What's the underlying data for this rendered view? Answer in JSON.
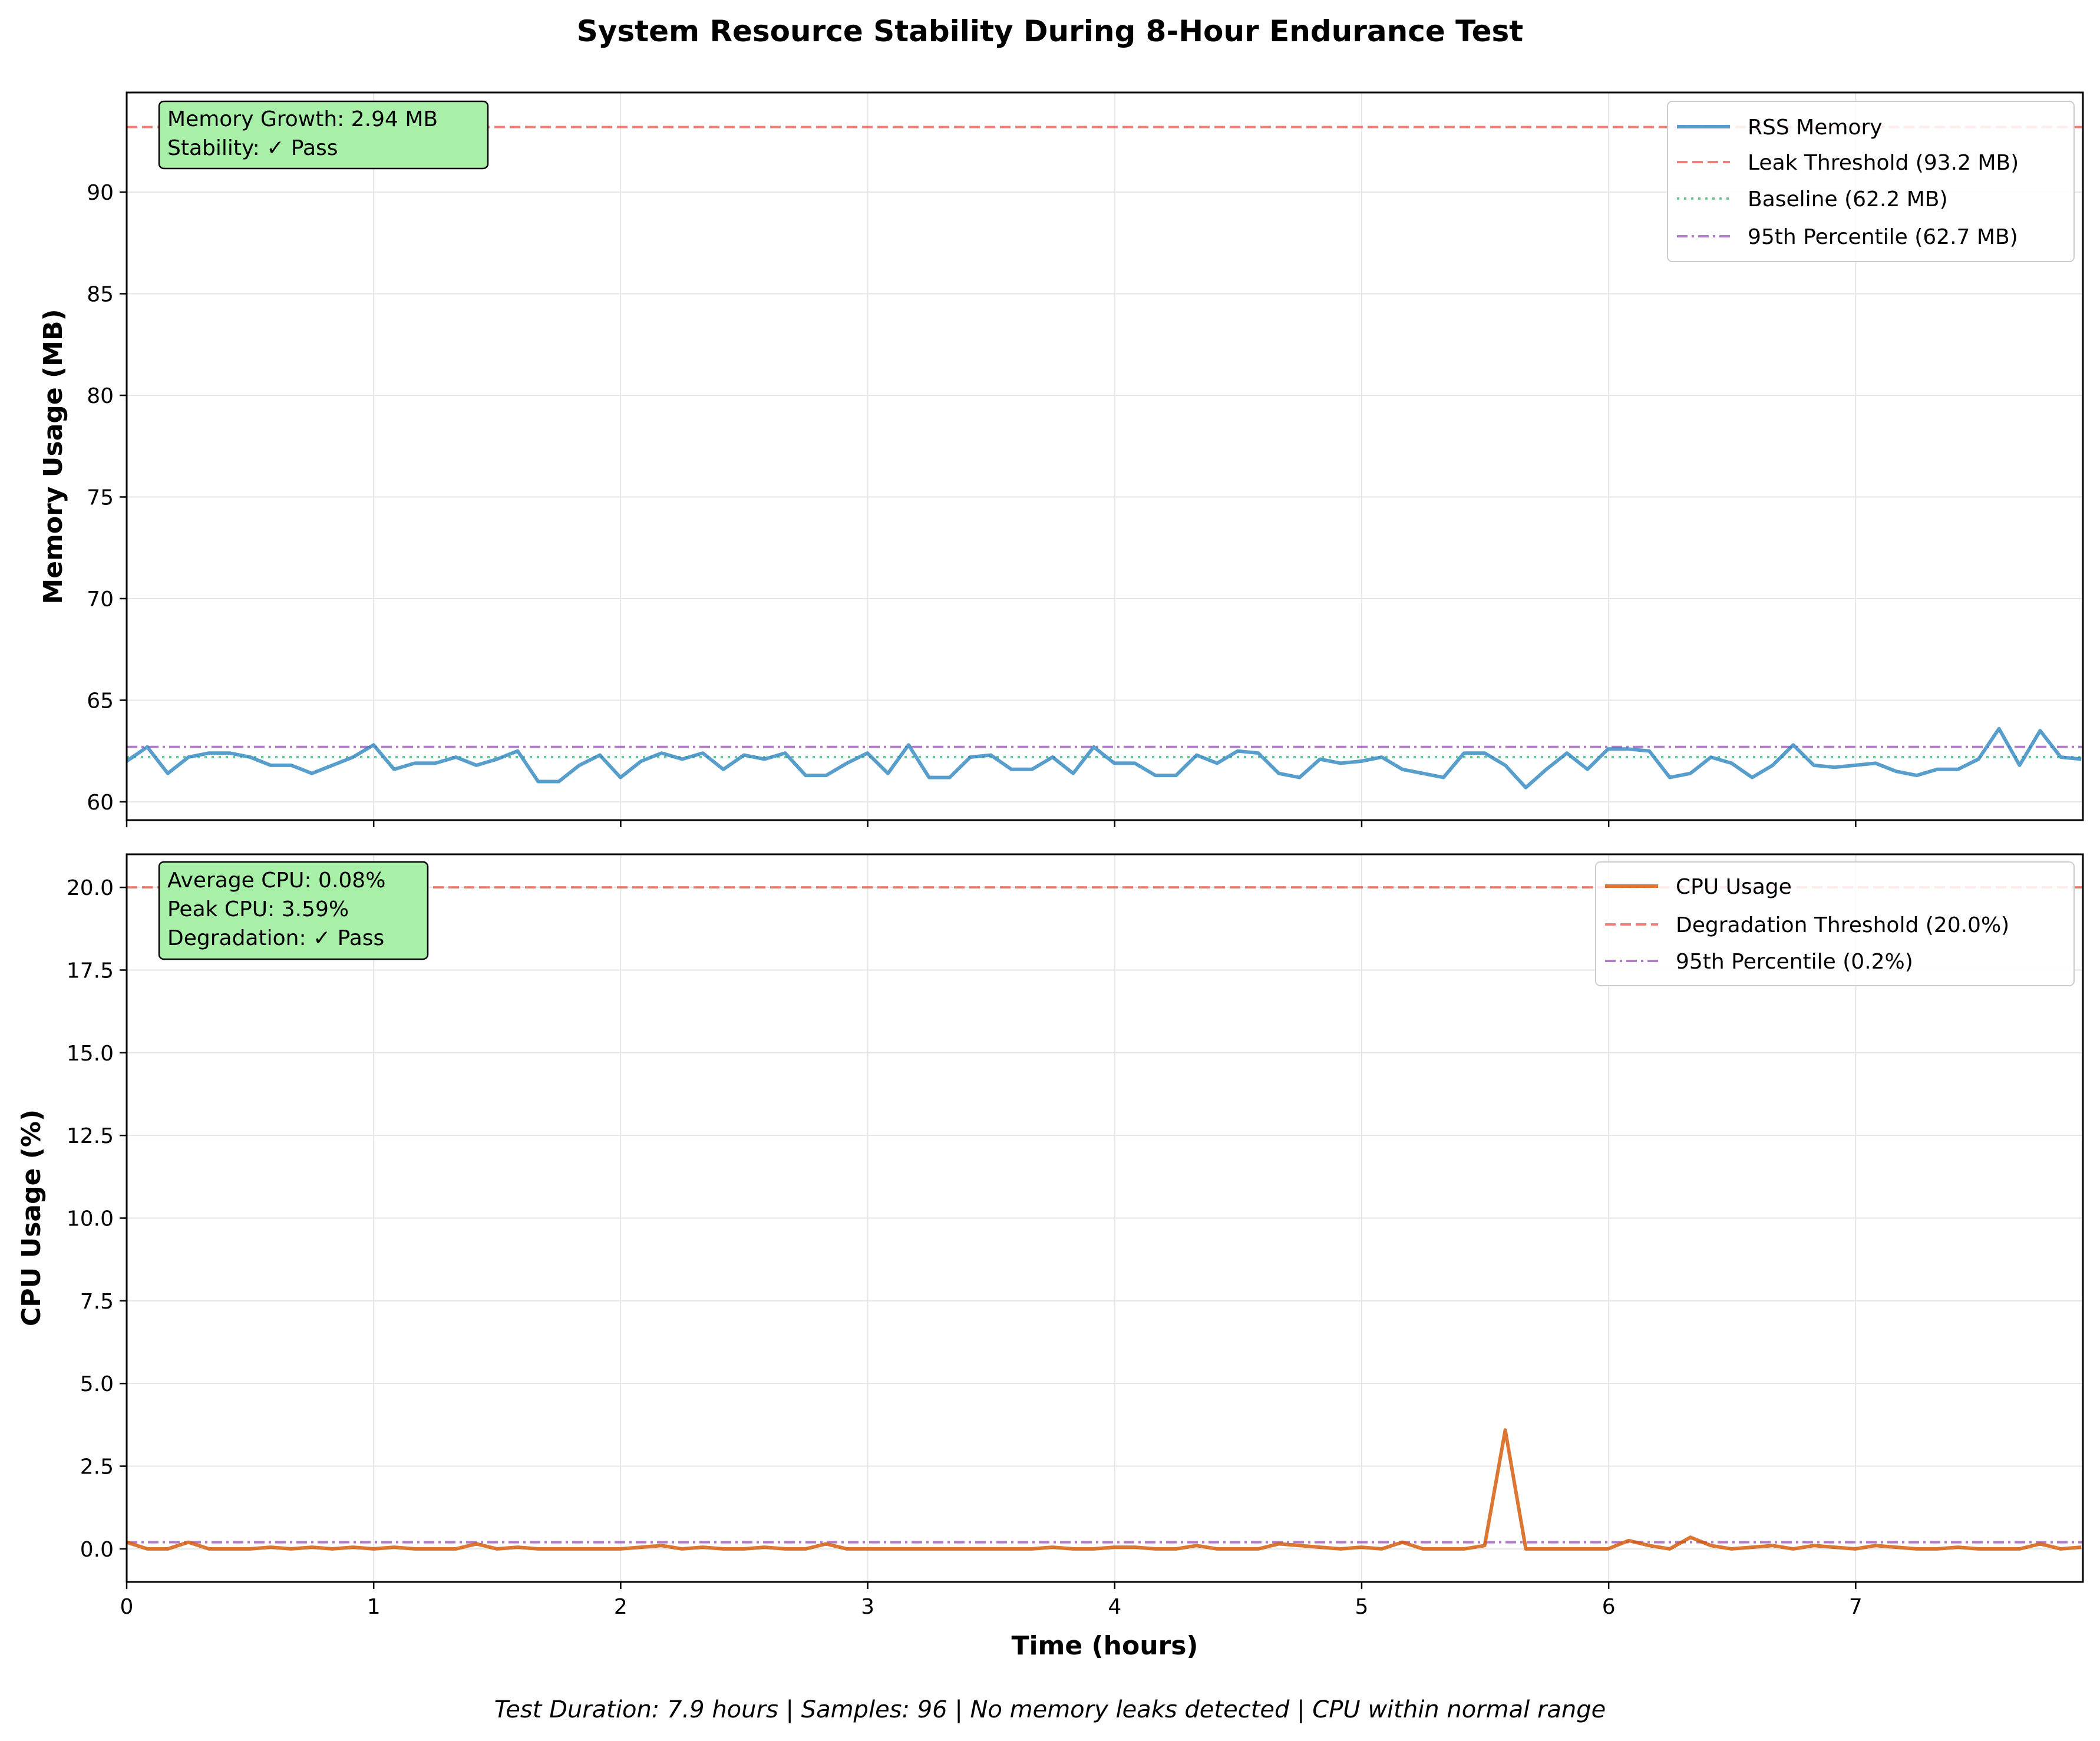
{
  "figure": {
    "title": "System Resource Stability During 8-Hour Endurance Test",
    "xlabel": "Time (hours)",
    "footer": "Test Duration: 7.9 hours | Samples: 96 | No memory leaks detected | CPU within normal range"
  },
  "colors": {
    "memory": "#2e86c1",
    "cpu": "#d35400",
    "threshold": "#e74c3c",
    "baseline": "#27ae60",
    "percentile": "#8e44ad",
    "stats_box": "#a8f0a8"
  },
  "chart_data": [
    {
      "type": "line",
      "ylabel": "Memory Usage (MB)",
      "xlim": [
        0,
        7.92
      ],
      "ylim": [
        59.1,
        94.9
      ],
      "x_ticks": [
        0,
        1,
        2,
        3,
        4,
        5,
        6,
        7
      ],
      "y_ticks": [
        60,
        65,
        70,
        75,
        80,
        85,
        90
      ],
      "y_tick_labels": [
        "60",
        "65",
        "70",
        "75",
        "80",
        "85",
        "90"
      ],
      "grid": true,
      "legend_position": "top-right",
      "series": [
        {
          "name": "RSS Memory",
          "sample_interval_hours": 0.0833,
          "values": [
            62.0,
            62.7,
            61.4,
            62.2,
            62.4,
            62.4,
            62.2,
            61.8,
            61.8,
            61.4,
            61.8,
            62.2,
            62.8,
            61.6,
            61.9,
            61.9,
            62.2,
            61.8,
            62.1,
            62.5,
            61.0,
            61.0,
            61.8,
            62.3,
            61.2,
            62.0,
            62.4,
            62.1,
            62.4,
            61.6,
            62.3,
            62.1,
            62.4,
            61.3,
            61.3,
            61.9,
            62.4,
            61.4,
            62.8,
            61.2,
            61.2,
            62.2,
            62.3,
            61.6,
            61.6,
            62.2,
            61.4,
            62.7,
            61.9,
            61.9,
            61.3,
            61.3,
            62.3,
            61.9,
            62.5,
            62.4,
            61.4,
            61.2,
            62.1,
            61.9,
            62.0,
            62.2,
            61.6,
            61.4,
            61.2,
            62.4,
            62.4,
            61.8,
            60.7,
            61.6,
            62.4,
            61.6,
            62.6,
            62.6,
            62.5,
            61.2,
            61.4,
            62.2,
            61.9,
            61.2,
            61.8,
            62.8,
            61.8,
            61.7,
            61.8,
            61.9,
            61.5,
            61.3,
            61.6,
            61.6,
            62.1,
            63.6,
            61.8,
            63.5,
            62.2,
            62.1
          ]
        }
      ],
      "reference_lines": [
        {
          "name": "Leak Threshold (93.2 MB)",
          "value": 93.2,
          "style": "dashed",
          "color": "#e74c3c"
        },
        {
          "name": "Baseline (62.2 MB)",
          "value": 62.2,
          "style": "dotted",
          "color": "#27ae60"
        },
        {
          "name": "95th Percentile (62.7 MB)",
          "value": 62.7,
          "style": "dashdot",
          "color": "#8e44ad"
        }
      ],
      "annotation": [
        "Memory Growth: 2.94 MB",
        "Stability: ✓ Pass"
      ]
    },
    {
      "type": "line",
      "ylabel": "CPU Usage (%)",
      "xlim": [
        0,
        7.92
      ],
      "ylim": [
        -1.0,
        21.0
      ],
      "x_ticks": [
        0,
        1,
        2,
        3,
        4,
        5,
        6,
        7
      ],
      "x_tick_labels": [
        "0",
        "1",
        "2",
        "3",
        "4",
        "5",
        "6",
        "7"
      ],
      "y_ticks": [
        0,
        2.5,
        5,
        7.5,
        10,
        12.5,
        15,
        17.5,
        20
      ],
      "y_tick_labels": [
        "0.0",
        "2.5",
        "5.0",
        "7.5",
        "10.0",
        "12.5",
        "15.0",
        "17.5",
        "20.0"
      ],
      "grid": true,
      "legend_position": "top-right",
      "series": [
        {
          "name": "CPU Usage",
          "sample_interval_hours": 0.0833,
          "values": [
            0.2,
            0.0,
            0.0,
            0.2,
            0.0,
            0.0,
            0.0,
            0.05,
            0.0,
            0.05,
            0.0,
            0.05,
            0.0,
            0.05,
            0.0,
            0.0,
            0.0,
            0.15,
            0.0,
            0.05,
            0.0,
            0.0,
            0.0,
            0.0,
            0.0,
            0.05,
            0.1,
            0.0,
            0.05,
            0.0,
            0.0,
            0.05,
            0.0,
            0.0,
            0.15,
            0.0,
            0.0,
            0.0,
            0.0,
            0.0,
            0.0,
            0.0,
            0.0,
            0.0,
            0.0,
            0.05,
            0.0,
            0.0,
            0.05,
            0.05,
            0.0,
            0.0,
            0.1,
            0.0,
            0.0,
            0.0,
            0.15,
            0.1,
            0.05,
            0.0,
            0.05,
            0.0,
            0.2,
            0.0,
            0.0,
            0.0,
            0.1,
            3.59,
            0.0,
            0.0,
            0.0,
            0.0,
            0.0,
            0.25,
            0.1,
            0.0,
            0.35,
            0.1,
            0.0,
            0.05,
            0.1,
            0.0,
            0.1,
            0.05,
            0.0,
            0.1,
            0.05,
            0.0,
            0.0,
            0.05,
            0.0,
            0.0,
            0.0,
            0.15,
            0.0,
            0.05
          ]
        }
      ],
      "reference_lines": [
        {
          "name": "Degradation Threshold (20.0%)",
          "value": 20.0,
          "style": "dashed",
          "color": "#e74c3c"
        },
        {
          "name": "95th Percentile (0.2%)",
          "value": 0.2,
          "style": "dashdot",
          "color": "#8e44ad"
        }
      ],
      "annotation": [
        "Average CPU: 0.08%",
        "Peak CPU: 3.59%",
        "Degradation: ✓ Pass"
      ]
    }
  ]
}
